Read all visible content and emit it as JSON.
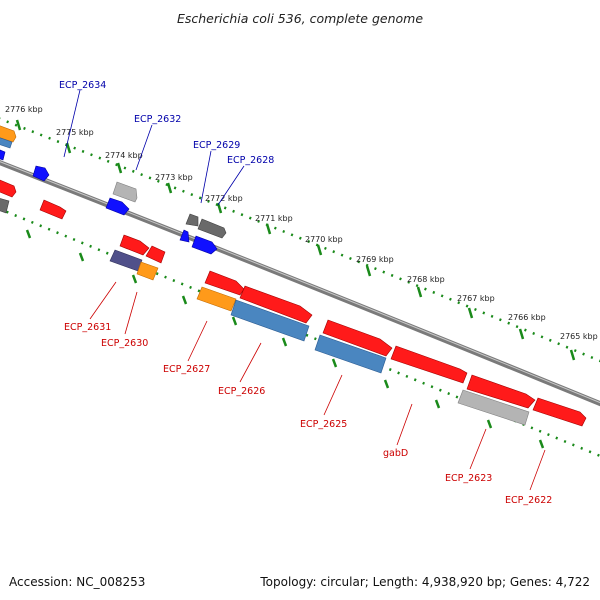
{
  "title": "Escherichia coli 536, complete genome",
  "footer": {
    "accession": "Accession: NC_008253",
    "summary": "Topology: circular; Length: 4,938,920 bp; Genes: 4,722"
  },
  "colors": {
    "backbone": "#7a7a7a",
    "tick": "#1a8a1a",
    "top_label": "#0000aa",
    "bottom_label": "#cc0000",
    "red": "#ff1a1a",
    "blue": "#1010ff",
    "orange": "#ff9a1a",
    "steel": "#4a86c0",
    "gray": "#b4b4b4",
    "dark": "#6a6a6a",
    "purple": "#50508a"
  },
  "ticks": [
    "2776 kbp",
    "2775 kbp",
    "2774 kbp",
    "2773 kbp",
    "2772 kbp",
    "2771 kbp",
    "2770 kbp",
    "2769 kbp",
    "2768 kbp",
    "2767 kbp",
    "2766 kbp",
    "2765 kbp"
  ],
  "top_genes": [
    "ECP_2634",
    "ECP_2632",
    "ECP_2629",
    "ECP_2628"
  ],
  "bottom_genes": [
    "ECP_2631",
    "ECP_2630",
    "ECP_2627",
    "ECP_2626",
    "ECP_2625",
    "gabD",
    "ECP_2623",
    "ECP_2622"
  ]
}
